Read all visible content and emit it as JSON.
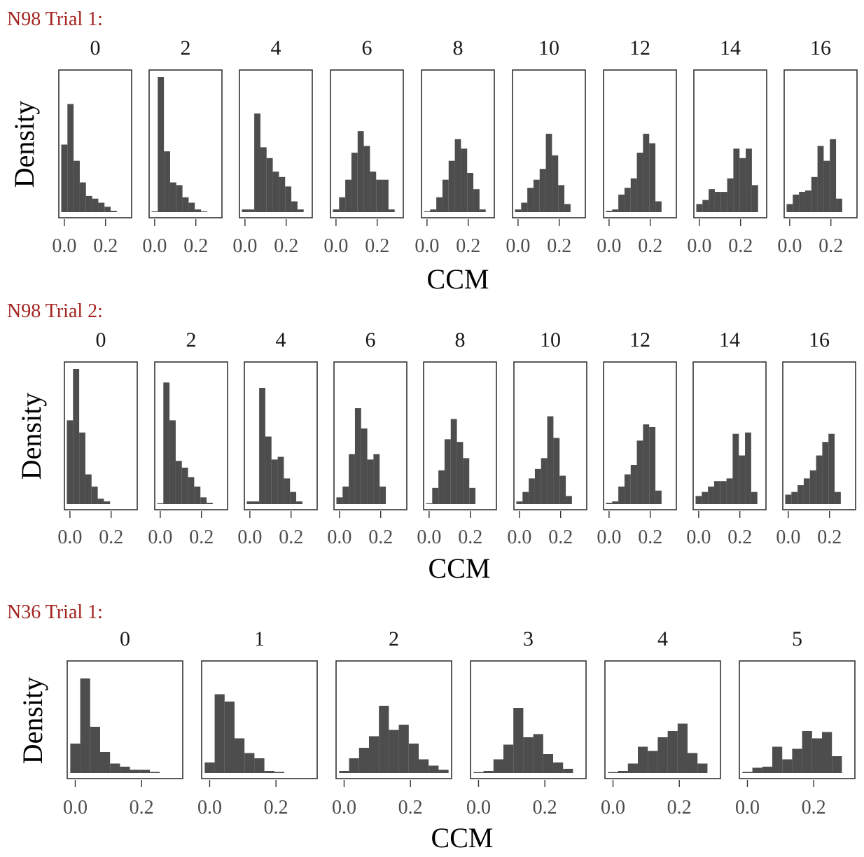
{
  "chart_data": [
    {
      "type": "bar",
      "title": "N98 Trial 1:",
      "xlabel": "CCM",
      "ylabel": "Density",
      "xlim": [
        -0.02,
        0.32
      ],
      "xticks": [
        0.0,
        0.2
      ],
      "xtick_labels": [
        "0.0",
        "0.2"
      ],
      "bin_width": 0.03,
      "panels": [
        {
          "label": "0",
          "bin_start": -0.015,
          "values": [
            0.5,
            0.8,
            0.38,
            0.22,
            0.12,
            0.1,
            0.07,
            0.04,
            0.01
          ]
        },
        {
          "label": "2",
          "bin_start": -0.015,
          "values": [
            0.0,
            1.0,
            0.45,
            0.22,
            0.2,
            0.11,
            0.07,
            0.02,
            0.0
          ]
        },
        {
          "label": "4",
          "bin_start": -0.015,
          "values": [
            0.02,
            0.02,
            0.73,
            0.48,
            0.4,
            0.3,
            0.26,
            0.19,
            0.08,
            0.02
          ]
        },
        {
          "label": "6",
          "bin_start": -0.015,
          "values": [
            0.02,
            0.11,
            0.24,
            0.44,
            0.6,
            0.49,
            0.3,
            0.24,
            0.24,
            0.02
          ]
        },
        {
          "label": "8",
          "bin_start": -0.015,
          "values": [
            0.0,
            0.02,
            0.11,
            0.24,
            0.38,
            0.54,
            0.47,
            0.29,
            0.17,
            0.02
          ]
        },
        {
          "label": "10",
          "bin_start": -0.015,
          "values": [
            0.02,
            0.07,
            0.18,
            0.24,
            0.32,
            0.58,
            0.42,
            0.2,
            0.06
          ]
        },
        {
          "label": "12",
          "bin_start": -0.015,
          "values": [
            0.01,
            0.02,
            0.13,
            0.18,
            0.25,
            0.44,
            0.58,
            0.51,
            0.08
          ]
        },
        {
          "label": "14",
          "bin_start": -0.015,
          "values": [
            0.06,
            0.09,
            0.17,
            0.15,
            0.15,
            0.25,
            0.47,
            0.4,
            0.47,
            0.2
          ]
        },
        {
          "label": "16",
          "bin_start": -0.015,
          "values": [
            0.06,
            0.13,
            0.15,
            0.16,
            0.26,
            0.49,
            0.38,
            0.54,
            0.1
          ]
        }
      ]
    },
    {
      "type": "bar",
      "title": "N98 Trial 2:",
      "xlabel": "CCM",
      "ylabel": "Density",
      "xlim": [
        -0.02,
        0.32
      ],
      "xticks": [
        0.0,
        0.2
      ],
      "xtick_labels": [
        "0.0",
        "0.2"
      ],
      "bin_width": 0.03,
      "panels": [
        {
          "label": "0",
          "bin_start": -0.015,
          "values": [
            0.62,
            1.0,
            0.53,
            0.22,
            0.13,
            0.04,
            0.02
          ]
        },
        {
          "label": "2",
          "bin_start": -0.015,
          "values": [
            0.0,
            0.9,
            0.62,
            0.32,
            0.27,
            0.2,
            0.13,
            0.05,
            0.01
          ]
        },
        {
          "label": "4",
          "bin_start": -0.015,
          "values": [
            0.02,
            0.02,
            0.86,
            0.5,
            0.33,
            0.35,
            0.19,
            0.09,
            0.02
          ]
        },
        {
          "label": "6",
          "bin_start": -0.015,
          "values": [
            0.05,
            0.13,
            0.37,
            0.71,
            0.56,
            0.33,
            0.37,
            0.13
          ]
        },
        {
          "label": "8",
          "bin_start": -0.015,
          "values": [
            0.0,
            0.12,
            0.25,
            0.48,
            0.63,
            0.46,
            0.34,
            0.12
          ]
        },
        {
          "label": "10",
          "bin_start": -0.015,
          "values": [
            0.02,
            0.09,
            0.19,
            0.26,
            0.34,
            0.65,
            0.49,
            0.21,
            0.06
          ]
        },
        {
          "label": "12",
          "bin_start": -0.015,
          "values": [
            0.01,
            0.02,
            0.13,
            0.22,
            0.29,
            0.47,
            0.59,
            0.57,
            0.1
          ]
        },
        {
          "label": "14",
          "bin_start": -0.015,
          "values": [
            0.06,
            0.09,
            0.13,
            0.17,
            0.17,
            0.19,
            0.52,
            0.36,
            0.53,
            0.09
          ]
        },
        {
          "label": "16",
          "bin_start": -0.015,
          "values": [
            0.07,
            0.09,
            0.14,
            0.19,
            0.25,
            0.36,
            0.46,
            0.52,
            0.09
          ]
        }
      ]
    },
    {
      "type": "bar",
      "title": "N36 Trial 1:",
      "xlabel": "CCM",
      "ylabel": "Density",
      "xlim": [
        -0.02,
        0.32
      ],
      "xticks": [
        0.0,
        0.2
      ],
      "xtick_labels": [
        "0.0",
        "0.2"
      ],
      "bin_width": 0.03,
      "panels": [
        {
          "label": "0",
          "bin_start": -0.015,
          "values": [
            0.28,
            0.9,
            0.44,
            0.2,
            0.09,
            0.06,
            0.03,
            0.03,
            0.01
          ]
        },
        {
          "label": "1",
          "bin_start": -0.015,
          "values": [
            0.1,
            0.75,
            0.68,
            0.33,
            0.19,
            0.14,
            0.02,
            0.01
          ]
        },
        {
          "label": "2",
          "bin_start": -0.015,
          "values": [
            0.02,
            0.14,
            0.24,
            0.35,
            0.64,
            0.41,
            0.46,
            0.28,
            0.13,
            0.07,
            0.03
          ]
        },
        {
          "label": "3",
          "bin_start": -0.015,
          "values": [
            0.0,
            0.02,
            0.13,
            0.27,
            0.62,
            0.34,
            0.37,
            0.18,
            0.1,
            0.04
          ]
        },
        {
          "label": "4",
          "bin_start": -0.015,
          "values": [
            0.0,
            0.02,
            0.09,
            0.25,
            0.21,
            0.34,
            0.4,
            0.47,
            0.19,
            0.09
          ]
        },
        {
          "label": "5",
          "bin_start": -0.015,
          "values": [
            0.01,
            0.05,
            0.06,
            0.25,
            0.13,
            0.23,
            0.4,
            0.33,
            0.39,
            0.16
          ]
        }
      ]
    }
  ]
}
